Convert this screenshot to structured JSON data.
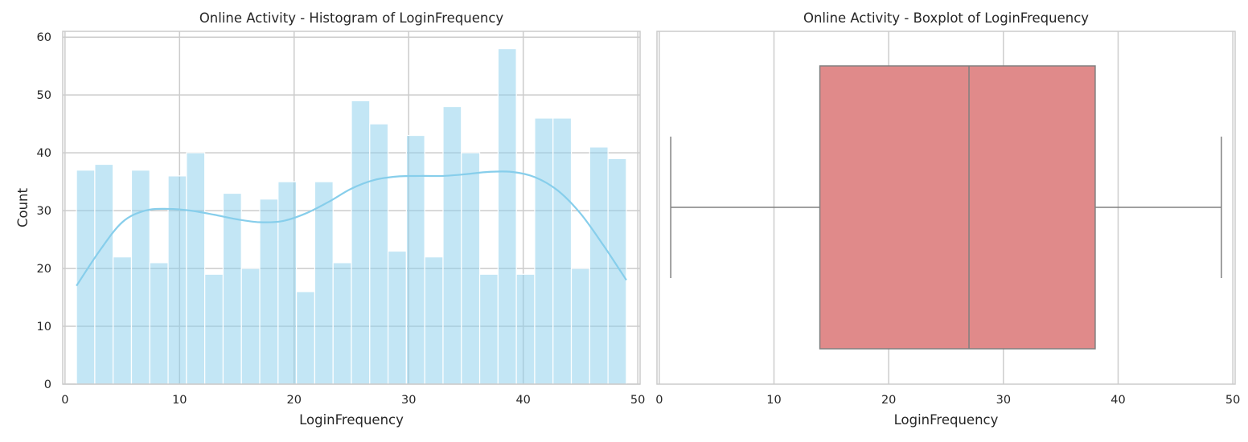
{
  "chart_data": [
    {
      "type": "bar",
      "subtype": "histogram",
      "title": "Online Activity - Histogram of LoginFrequency",
      "xlabel": "LoginFrequency",
      "ylabel": "Count",
      "xlim": [
        -0.2,
        50.2
      ],
      "ylim": [
        0,
        61
      ],
      "xticks": [
        0,
        10,
        20,
        30,
        40,
        50
      ],
      "yticks": [
        0,
        10,
        20,
        30,
        40,
        50,
        60
      ],
      "grid": true,
      "bar_color": "#87ceeb",
      "bin_edges": [
        1,
        2.6,
        4.2,
        5.8,
        7.4,
        9,
        10.6,
        12.2,
        13.8,
        15.4,
        17,
        18.6,
        20.2,
        21.8,
        23.4,
        25,
        26.6,
        28.2,
        29.8,
        31.4,
        33,
        34.6,
        36.2,
        37.8,
        39.4,
        41,
        42.6,
        44.2,
        45.8,
        47.4,
        49
      ],
      "values": [
        37,
        38,
        22,
        37,
        21,
        36,
        40,
        19,
        33,
        20,
        32,
        35,
        16,
        35,
        21,
        49,
        45,
        23,
        43,
        22,
        48,
        40,
        19,
        58,
        19,
        46,
        46,
        20,
        41,
        39
      ],
      "kde": {
        "color": "#87ceeb",
        "x": [
          1,
          3,
          5,
          7,
          9,
          11,
          13,
          15,
          17,
          19,
          21,
          23,
          25,
          27,
          29,
          31,
          33,
          35,
          37,
          39,
          41,
          43,
          45,
          47,
          49
        ],
        "y": [
          17,
          23,
          28,
          30,
          30.3,
          30,
          29.3,
          28.5,
          28,
          28.2,
          29.5,
          31.5,
          33.8,
          35.3,
          35.9,
          36,
          36,
          36.3,
          36.7,
          36.7,
          35.8,
          33.5,
          29.5,
          24,
          18
        ]
      }
    },
    {
      "type": "box",
      "title": "Online Activity - Boxplot of LoginFrequency",
      "xlabel": "LoginFrequency",
      "xlim": [
        -0.2,
        50.2
      ],
      "xticks": [
        0,
        10,
        20,
        30,
        40,
        50
      ],
      "grid": true,
      "box_color": "#e08a8a",
      "line_color": "#808080",
      "min": 1,
      "q1": 14,
      "median": 27,
      "q3": 38,
      "max": 49
    }
  ]
}
